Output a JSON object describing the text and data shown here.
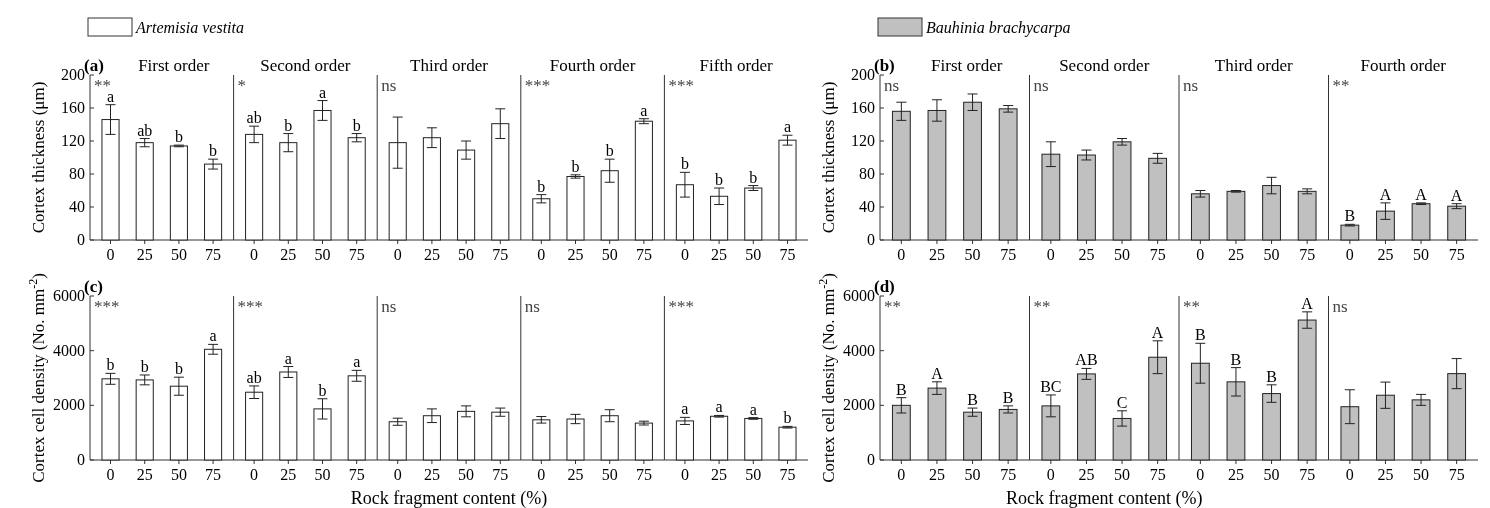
{
  "chart_data": [
    {
      "type": "bar",
      "title": "First order",
      "ylabel": "Cortex thickness (μm)",
      "categories": [
        "0",
        "25",
        "50",
        "75"
      ],
      "ylim": [
        0,
        200
      ],
      "yticks": [
        0,
        40,
        80,
        120,
        160,
        200
      ],
      "legend": "top",
      "annotations": [
        "(a)",
        "**"
      ],
      "series": [
        {
          "name": "Artemisia vestita",
          "color": "#ffffff",
          "values": [
            146,
            118,
            114,
            92
          ],
          "errors": [
            18,
            5,
            1,
            6
          ],
          "value_labels": [
            "a",
            "ab",
            "b",
            "b"
          ]
        }
      ]
    },
    {
      "type": "bar",
      "title": "Second order",
      "categories": [
        "0",
        "25",
        "50",
        "75"
      ],
      "ylim": [
        0,
        200
      ],
      "tick_labels": "x",
      "annotations": [
        "*"
      ],
      "series": [
        {
          "color": "#ffffff",
          "values": [
            128,
            118,
            157,
            124
          ],
          "errors": [
            10,
            11,
            12,
            5
          ],
          "value_labels": [
            "ab",
            "b",
            "a",
            "b"
          ]
        }
      ]
    },
    {
      "type": "bar",
      "title": "Third order",
      "categories": [
        "0",
        "25",
        "50",
        "75"
      ],
      "ylim": [
        0,
        200
      ],
      "tick_labels": "x",
      "annotations": [
        "ns"
      ],
      "series": [
        {
          "color": "#ffffff",
          "values": [
            118,
            124,
            109,
            141
          ],
          "errors": [
            31,
            12,
            11,
            18
          ]
        }
      ]
    },
    {
      "type": "bar",
      "title": "Fourth order",
      "categories": [
        "0",
        "25",
        "50",
        "75"
      ],
      "ylim": [
        0,
        200
      ],
      "tick_labels": "x",
      "annotations": [
        "***"
      ],
      "series": [
        {
          "color": "#ffffff",
          "values": [
            50,
            77,
            84,
            144
          ],
          "errors": [
            5,
            2,
            14,
            3
          ],
          "value_labels": [
            "b",
            "b",
            "b",
            "a"
          ]
        }
      ]
    },
    {
      "type": "bar",
      "title": "Fifth order",
      "categories": [
        "0",
        "25",
        "50",
        "75"
      ],
      "ylim": [
        0,
        200
      ],
      "tick_labels": "x",
      "annotations": [
        "***"
      ],
      "series": [
        {
          "color": "#ffffff",
          "values": [
            67,
            53,
            63,
            121
          ],
          "errors": [
            15,
            10,
            3,
            6
          ],
          "value_labels": [
            "b",
            "b",
            "b",
            "a"
          ]
        }
      ]
    },
    {
      "type": "bar",
      "title": "First order",
      "ylabel": "Cortex thickness (μm)",
      "categories": [
        "0",
        "25",
        "50",
        "75"
      ],
      "ylim": [
        0,
        200
      ],
      "yticks": [
        0,
        40,
        80,
        120,
        160,
        200
      ],
      "legend": "top",
      "annotations": [
        "(b)",
        "ns"
      ],
      "series": [
        {
          "name": "Bauhinia brachycarpa",
          "color": "#c0c0c0",
          "values": [
            156,
            157,
            167,
            159
          ],
          "errors": [
            11,
            13,
            10,
            4
          ]
        }
      ]
    },
    {
      "type": "bar",
      "title": "Second order",
      "categories": [
        "0",
        "25",
        "50",
        "75"
      ],
      "ylim": [
        0,
        200
      ],
      "tick_labels": "x",
      "annotations": [
        "ns"
      ],
      "series": [
        {
          "color": "#c0c0c0",
          "values": [
            104,
            103,
            119,
            99
          ],
          "errors": [
            15,
            6,
            4,
            6
          ]
        }
      ]
    },
    {
      "type": "bar",
      "title": "Third order",
      "categories": [
        "0",
        "25",
        "50",
        "75"
      ],
      "ylim": [
        0,
        200
      ],
      "tick_labels": "x",
      "annotations": [
        "ns"
      ],
      "series": [
        {
          "color": "#c0c0c0",
          "values": [
            56,
            59,
            66,
            59
          ],
          "errors": [
            4,
            1,
            10,
            3
          ]
        }
      ]
    },
    {
      "type": "bar",
      "title": "Fourth order",
      "categories": [
        "0",
        "25",
        "50",
        "75"
      ],
      "ylim": [
        0,
        200
      ],
      "tick_labels": "x",
      "annotations": [
        "**"
      ],
      "series": [
        {
          "color": "#c0c0c0",
          "values": [
            18,
            35,
            44,
            41
          ],
          "errors": [
            1,
            10,
            1,
            3
          ],
          "value_labels": [
            "B",
            "A",
            "A",
            "A"
          ]
        }
      ]
    },
    {
      "type": "bar",
      "ylabel": "Cortex cell density (No. mm$^{-2}$)",
      "categories": [
        "0",
        "25",
        "50",
        "75"
      ],
      "ylim": [
        0,
        6000
      ],
      "yticks": [
        0,
        2000,
        4000,
        6000
      ],
      "annotations": [
        "(c)",
        "***"
      ],
      "series": [
        {
          "color": "#ffffff",
          "values": [
            2970,
            2930,
            2700,
            4050
          ],
          "errors": [
            200,
            180,
            330,
            180
          ],
          "value_labels": [
            "b",
            "b",
            "b",
            "a"
          ]
        }
      ]
    },
    {
      "type": "bar",
      "categories": [
        "0",
        "25",
        "50",
        "75"
      ],
      "ylim": [
        0,
        6000
      ],
      "tick_labels": "x",
      "annotations": [
        "***"
      ],
      "series": [
        {
          "color": "#ffffff",
          "values": [
            2480,
            3220,
            1870,
            3080
          ],
          "errors": [
            230,
            200,
            370,
            200
          ],
          "value_labels": [
            "ab",
            "a",
            "b",
            "a"
          ]
        }
      ]
    },
    {
      "type": "bar",
      "xlabel": "Rock fragment content (%)",
      "categories": [
        "0",
        "25",
        "50",
        "75"
      ],
      "ylim": [
        0,
        6000
      ],
      "tick_labels": "x",
      "annotations": [
        "ns"
      ],
      "series": [
        {
          "color": "#ffffff",
          "values": [
            1400,
            1620,
            1780,
            1750
          ],
          "errors": [
            130,
            250,
            200,
            150
          ]
        }
      ]
    },
    {
      "type": "bar",
      "categories": [
        "0",
        "25",
        "50",
        "75"
      ],
      "ylim": [
        0,
        6000
      ],
      "tick_labels": "x",
      "annotations": [
        "ns"
      ],
      "series": [
        {
          "color": "#ffffff",
          "values": [
            1470,
            1500,
            1620,
            1350
          ],
          "errors": [
            120,
            170,
            220,
            70
          ]
        }
      ]
    },
    {
      "type": "bar",
      "categories": [
        "0",
        "25",
        "50",
        "75"
      ],
      "ylim": [
        0,
        6000
      ],
      "tick_labels": "x",
      "annotations": [
        "***"
      ],
      "series": [
        {
          "color": "#ffffff",
          "values": [
            1430,
            1600,
            1520,
            1200
          ],
          "errors": [
            130,
            30,
            30,
            30
          ],
          "value_labels": [
            "a",
            "a",
            "a",
            "b"
          ]
        }
      ]
    },
    {
      "type": "bar",
      "ylabel": "Cortex cell density (No. mm$^{-2}$)",
      "categories": [
        "0",
        "25",
        "50",
        "75"
      ],
      "ylim": [
        0,
        6000
      ],
      "yticks": [
        0,
        2000,
        4000,
        6000
      ],
      "annotations": [
        "(d)",
        "**"
      ],
      "series": [
        {
          "color": "#c0c0c0",
          "values": [
            2000,
            2630,
            1750,
            1850
          ],
          "errors": [
            280,
            230,
            150,
            130
          ],
          "value_labels": [
            "B",
            "A",
            "B",
            "B"
          ]
        }
      ]
    },
    {
      "type": "bar",
      "xlabel": "Rock fragment content (%)",
      "categories": [
        "0",
        "25",
        "50",
        "75"
      ],
      "ylim": [
        0,
        6000
      ],
      "tick_labels": "x",
      "annotations": [
        "**"
      ],
      "series": [
        {
          "color": "#c0c0c0",
          "values": [
            1980,
            3150,
            1520,
            3760
          ],
          "errors": [
            400,
            200,
            280,
            600
          ],
          "value_labels": [
            "BC",
            "AB",
            "C",
            "A"
          ]
        }
      ]
    },
    {
      "type": "bar",
      "categories": [
        "0",
        "25",
        "50",
        "75"
      ],
      "ylim": [
        0,
        6000
      ],
      "tick_labels": "x",
      "annotations": [
        "**"
      ],
      "series": [
        {
          "color": "#c0c0c0",
          "values": [
            3540,
            2860,
            2430,
            5120
          ],
          "errors": [
            730,
            520,
            320,
            300
          ],
          "value_labels": [
            "B",
            "B",
            "B",
            "A"
          ]
        }
      ]
    },
    {
      "type": "bar",
      "categories": [
        "0",
        "25",
        "50",
        "75"
      ],
      "ylim": [
        0,
        6000
      ],
      "tick_labels": "x",
      "annotations": [
        "ns"
      ],
      "series": [
        {
          "color": "#c0c0c0",
          "values": [
            1950,
            2370,
            2200,
            3160
          ],
          "errors": [
            620,
            480,
            200,
            550
          ]
        }
      ]
    }
  ]
}
